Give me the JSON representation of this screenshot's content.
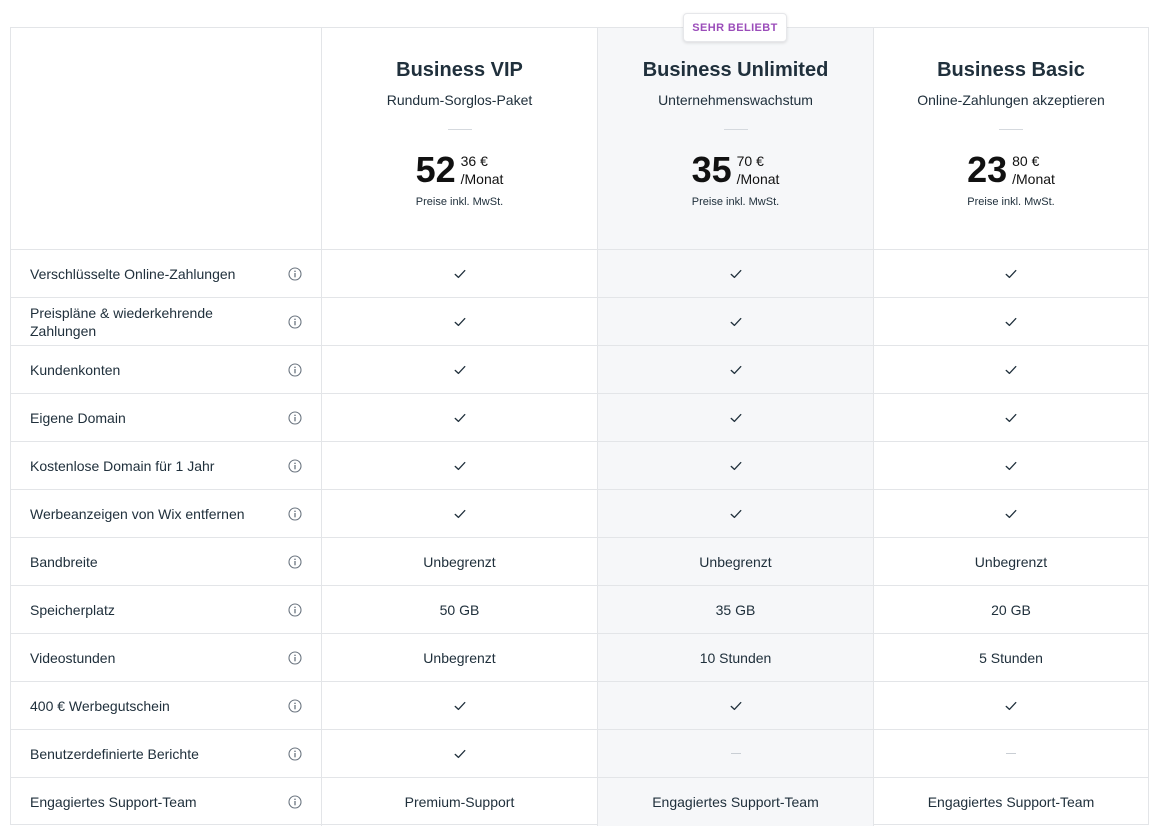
{
  "badge": {
    "label": "SEHR BELIEBT"
  },
  "colors": {
    "badge_text": "#9b4dba",
    "highlight_column_bg": "#f6f7f9",
    "border": "#e3e5e8"
  },
  "plans": [
    {
      "name": "Business VIP",
      "subtitle": "Rundum-Sorglos-Paket",
      "price_int": "52",
      "price_dec": "36 €",
      "period": "/Monat",
      "note": "Preise inkl. MwSt."
    },
    {
      "name": "Business Unlimited",
      "subtitle": "Unternehmenswachstum",
      "price_int": "35",
      "price_dec": "70 €",
      "period": "/Monat",
      "note": "Preise inkl. MwSt."
    },
    {
      "name": "Business Basic",
      "subtitle": "Online-Zahlungen akzeptieren",
      "price_int": "23",
      "price_dec": "80 €",
      "period": "/Monat",
      "note": "Preise inkl. MwSt."
    }
  ],
  "features": [
    {
      "label": "Verschlüsselte Online-Zahlungen",
      "values": [
        "check",
        "check",
        "check"
      ]
    },
    {
      "label": "Preispläne & wiederkehrende Zahlungen",
      "values": [
        "check",
        "check",
        "check"
      ]
    },
    {
      "label": "Kundenkonten",
      "values": [
        "check",
        "check",
        "check"
      ]
    },
    {
      "label": "Eigene Domain",
      "values": [
        "check",
        "check",
        "check"
      ]
    },
    {
      "label": "Kostenlose Domain für 1 Jahr",
      "values": [
        "check",
        "check",
        "check"
      ]
    },
    {
      "label": "Werbeanzeigen von Wix entfernen",
      "values": [
        "check",
        "check",
        "check"
      ]
    },
    {
      "label": "Bandbreite",
      "values": [
        "Unbegrenzt",
        "Unbegrenzt",
        "Unbegrenzt"
      ]
    },
    {
      "label": "Speicherplatz",
      "values": [
        "50 GB",
        "35 GB",
        "20 GB"
      ]
    },
    {
      "label": "Videostunden",
      "values": [
        "Unbegrenzt",
        "10 Stunden",
        "5 Stunden"
      ]
    },
    {
      "label": "400 € Werbegutschein",
      "values": [
        "check",
        "check",
        "check"
      ]
    },
    {
      "label": "Benutzerdefinierte Berichte",
      "values": [
        "check",
        "dash",
        "dash"
      ]
    },
    {
      "label": "Engagiertes Support-Team",
      "values": [
        "Premium-Support",
        "Engagiertes Support-Team",
        "Engagiertes Support-Team"
      ]
    }
  ],
  "icons": {
    "info": "info-icon",
    "check": "check-icon",
    "dash": "dash-icon"
  }
}
